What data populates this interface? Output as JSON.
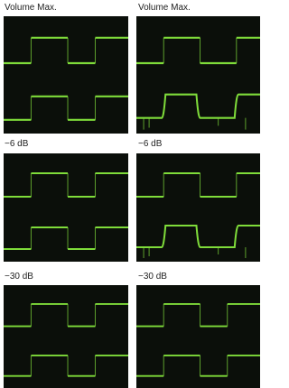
{
  "panels": [
    {
      "label": "Volume Max."
    },
    {
      "label": "Volume Max."
    },
    {
      "label": "−6 dB"
    },
    {
      "label": "−6 dB"
    },
    {
      "label": "−30 dB"
    },
    {
      "label": "−30 dB"
    }
  ]
}
